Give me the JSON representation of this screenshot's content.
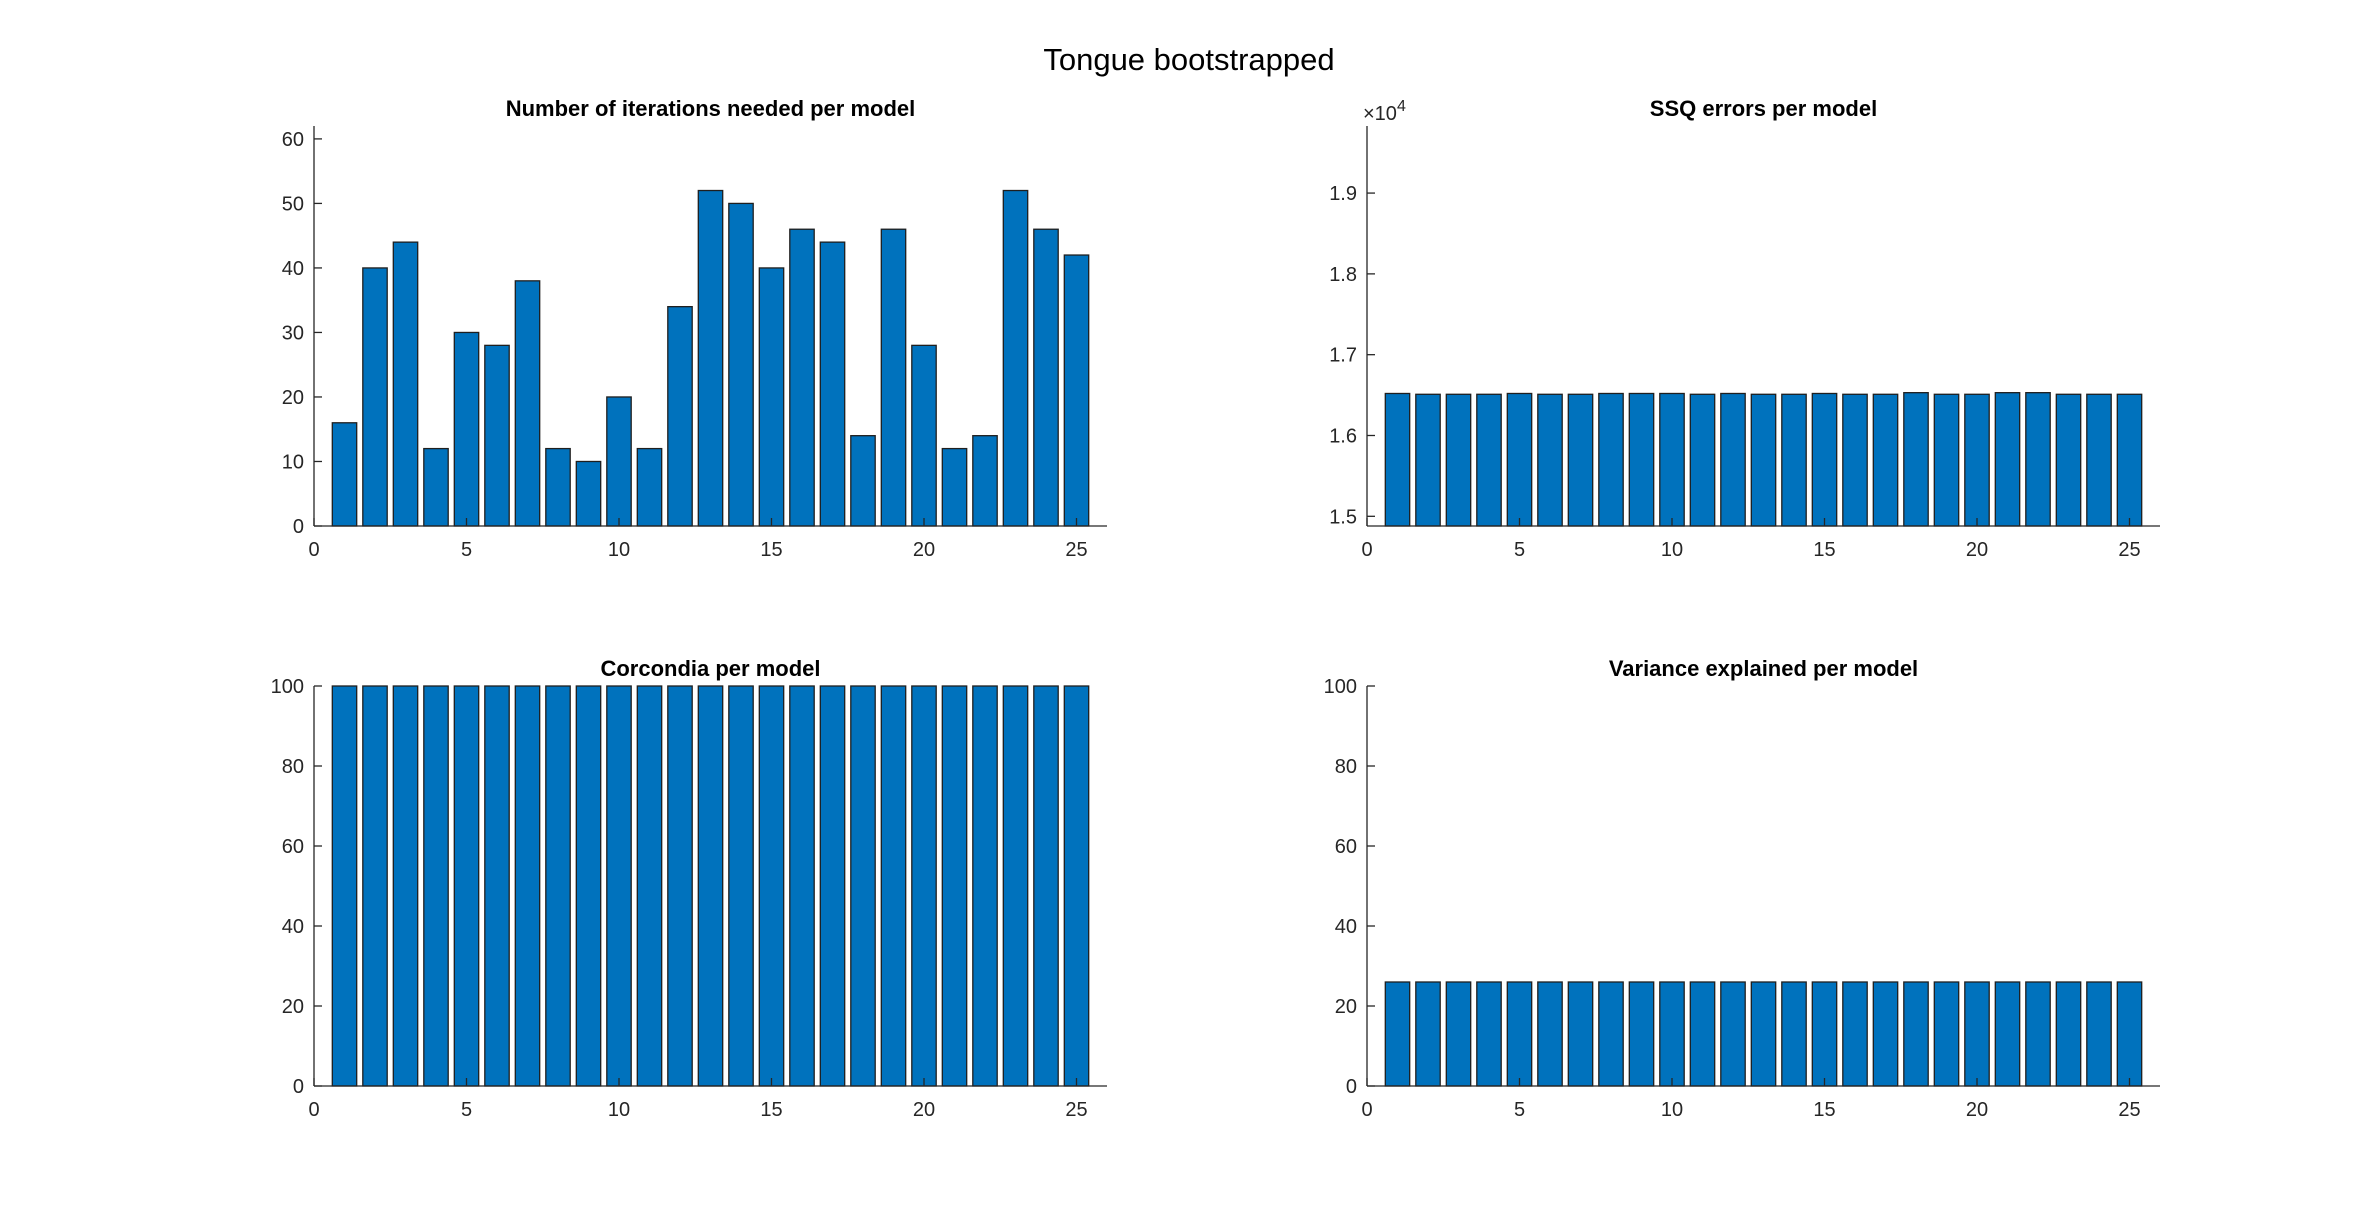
{
  "figure": {
    "title": "Tongue bootstrapped"
  },
  "colors": {
    "bar_fill": "#0072BD",
    "bar_edge": "#1F1F1F",
    "axis": "#262626"
  },
  "chart_data": [
    {
      "type": "bar",
      "title": "Number of iterations needed per model",
      "x": [
        1,
        2,
        3,
        4,
        5,
        6,
        7,
        8,
        9,
        10,
        11,
        12,
        13,
        14,
        15,
        16,
        17,
        18,
        19,
        20,
        21,
        22,
        23,
        24,
        25
      ],
      "values": [
        16,
        40,
        44,
        12,
        30,
        28,
        38,
        12,
        10,
        20,
        12,
        34,
        52,
        50,
        40,
        46,
        44,
        14,
        46,
        28,
        12,
        14,
        52,
        46,
        42
      ],
      "xlim": [
        0,
        26
      ],
      "ylim": [
        0,
        62
      ],
      "xticks": [
        0,
        5,
        10,
        15,
        20,
        25
      ],
      "yticks": [
        0,
        10,
        20,
        30,
        40,
        50,
        60
      ],
      "ytick_labels": [
        "0",
        "10",
        "20",
        "30",
        "40",
        "50",
        "60"
      ],
      "exponent_label": "",
      "grid": false
    },
    {
      "type": "bar",
      "title": "SSQ errors per model",
      "x": [
        1,
        2,
        3,
        4,
        5,
        6,
        7,
        8,
        9,
        10,
        11,
        12,
        13,
        14,
        15,
        16,
        17,
        18,
        19,
        20,
        21,
        22,
        23,
        24,
        25
      ],
      "values": [
        16520,
        16510,
        16510,
        16510,
        16520,
        16510,
        16510,
        16520,
        16520,
        16520,
        16510,
        16520,
        16510,
        16510,
        16520,
        16510,
        16510,
        16530,
        16510,
        16510,
        16530,
        16530,
        16510,
        16510,
        16510
      ],
      "xlim": [
        0,
        26
      ],
      "ylim": [
        14880,
        19830
      ],
      "xticks": [
        0,
        5,
        10,
        15,
        20,
        25
      ],
      "yticks": [
        15000,
        16000,
        17000,
        18000,
        19000
      ],
      "ytick_labels": [
        "1.5",
        "1.6",
        "1.7",
        "1.8",
        "1.9"
      ],
      "exponent_label": "×10",
      "exponent_power": "4",
      "grid": false
    },
    {
      "type": "bar",
      "title": "Corcondia per model",
      "x": [
        1,
        2,
        3,
        4,
        5,
        6,
        7,
        8,
        9,
        10,
        11,
        12,
        13,
        14,
        15,
        16,
        17,
        18,
        19,
        20,
        21,
        22,
        23,
        24,
        25
      ],
      "values": [
        100,
        100,
        100,
        100,
        100,
        100,
        100,
        100,
        100,
        100,
        100,
        100,
        100,
        100,
        100,
        100,
        100,
        100,
        100,
        100,
        100,
        100,
        100,
        100,
        100
      ],
      "xlim": [
        0,
        26
      ],
      "ylim": [
        0,
        100
      ],
      "xticks": [
        0,
        5,
        10,
        15,
        20,
        25
      ],
      "yticks": [
        0,
        20,
        40,
        60,
        80,
        100
      ],
      "ytick_labels": [
        "0",
        "20",
        "40",
        "60",
        "80",
        "100"
      ],
      "exponent_label": "",
      "grid": false
    },
    {
      "type": "bar",
      "title": "Variance explained per model",
      "x": [
        1,
        2,
        3,
        4,
        5,
        6,
        7,
        8,
        9,
        10,
        11,
        12,
        13,
        14,
        15,
        16,
        17,
        18,
        19,
        20,
        21,
        22,
        23,
        24,
        25
      ],
      "values": [
        26,
        26,
        26,
        26,
        26,
        26,
        26,
        26,
        26,
        26,
        26,
        26,
        26,
        26,
        26,
        26,
        26,
        26,
        26,
        26,
        26,
        26,
        26,
        26,
        26
      ],
      "xlim": [
        0,
        26
      ],
      "ylim": [
        0,
        100
      ],
      "xticks": [
        0,
        5,
        10,
        15,
        20,
        25
      ],
      "yticks": [
        0,
        20,
        40,
        60,
        80,
        100
      ],
      "ytick_labels": [
        "0",
        "20",
        "40",
        "60",
        "80",
        "100"
      ],
      "exponent_label": "",
      "grid": false
    }
  ]
}
